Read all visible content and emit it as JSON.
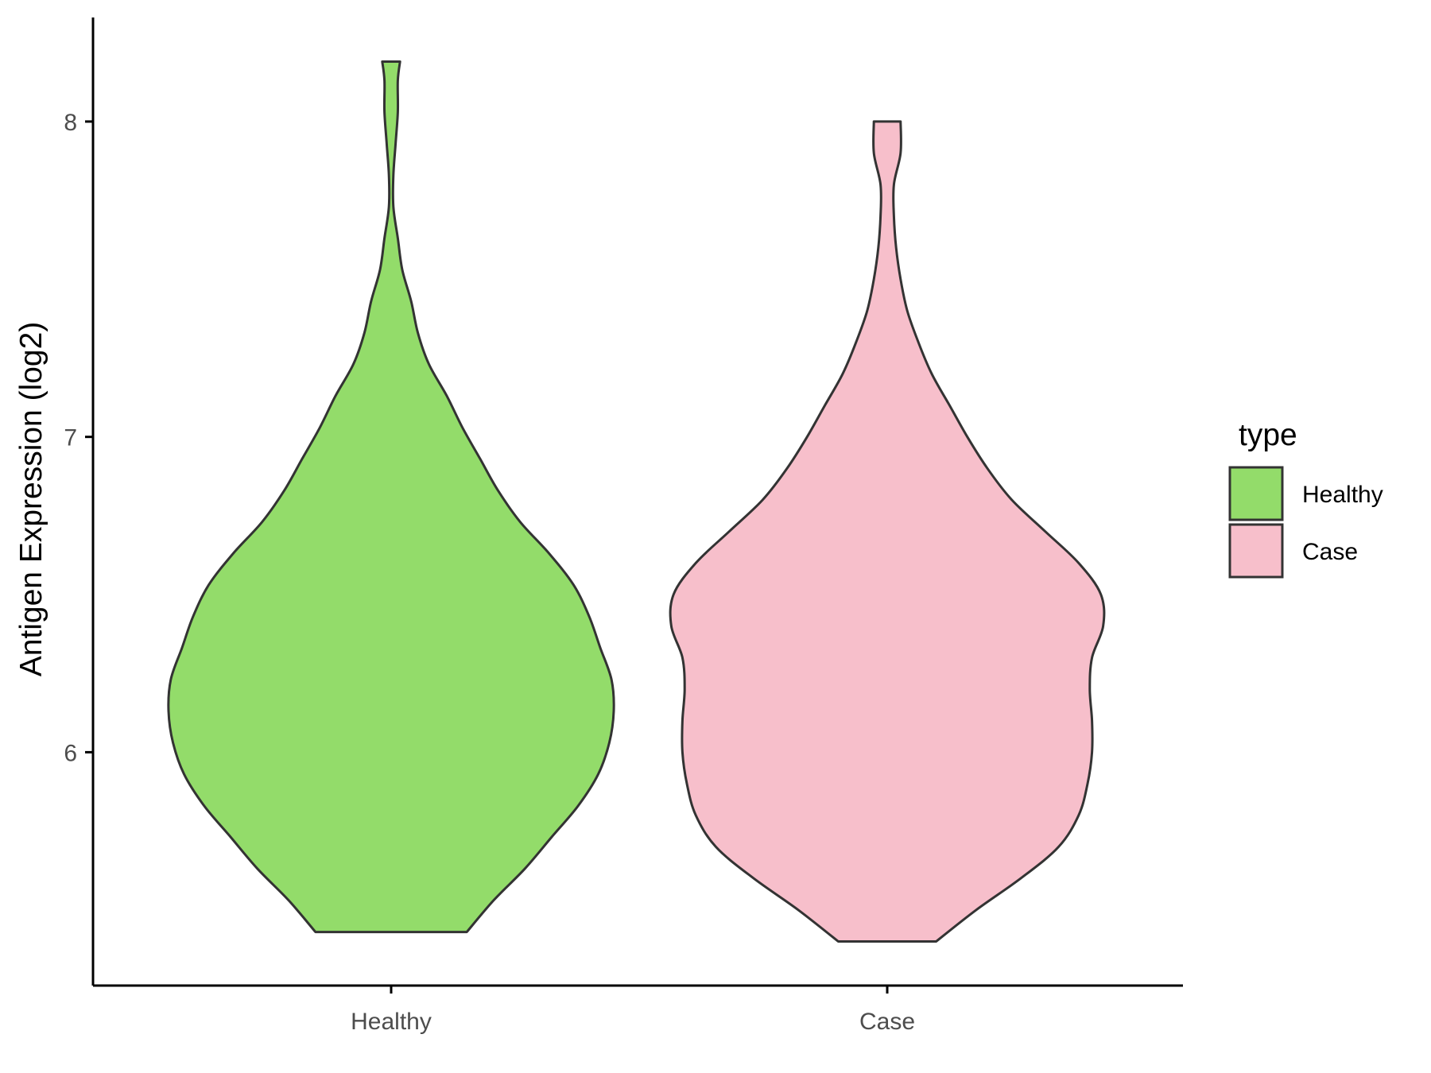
{
  "chart_data": {
    "type": "violin",
    "title": "",
    "xlabel": "",
    "ylabel": "Antigen Expression (log2)",
    "categories": [
      "Healthy",
      "Case"
    ],
    "ylim": [
      5.26,
      8.33
    ],
    "yticks": [
      6,
      7,
      8
    ],
    "grid": false,
    "legend": {
      "title": "type",
      "placement": "right",
      "entries": [
        {
          "label": "Healthy",
          "color": "#93dc6a"
        },
        {
          "label": "Case",
          "color": "#f7bfcb"
        }
      ]
    },
    "series": [
      {
        "name": "Healthy",
        "color": "#93dc6a",
        "min": 5.43,
        "max": 8.19,
        "density_profile": [
          [
            5.43,
            0.34
          ],
          [
            5.53,
            0.46
          ],
          [
            5.63,
            0.6
          ],
          [
            5.73,
            0.72
          ],
          [
            5.83,
            0.84
          ],
          [
            5.93,
            0.93
          ],
          [
            6.03,
            0.98
          ],
          [
            6.13,
            1.0
          ],
          [
            6.23,
            0.99
          ],
          [
            6.33,
            0.94
          ],
          [
            6.43,
            0.89
          ],
          [
            6.53,
            0.82
          ],
          [
            6.63,
            0.71
          ],
          [
            6.73,
            0.58
          ],
          [
            6.83,
            0.48
          ],
          [
            6.93,
            0.4
          ],
          [
            7.03,
            0.32
          ],
          [
            7.13,
            0.25
          ],
          [
            7.23,
            0.17
          ],
          [
            7.33,
            0.12
          ],
          [
            7.43,
            0.09
          ],
          [
            7.53,
            0.05
          ],
          [
            7.63,
            0.03
          ],
          [
            7.73,
            0.01
          ],
          [
            7.83,
            0.01
          ],
          [
            7.93,
            0.02
          ],
          [
            8.03,
            0.03
          ],
          [
            8.13,
            0.03
          ],
          [
            8.19,
            0.04
          ]
        ]
      },
      {
        "name": "Case",
        "color": "#f7bfcb",
        "min": 5.4,
        "max": 8.0,
        "density_profile": [
          [
            5.4,
            0.22
          ],
          [
            5.5,
            0.4
          ],
          [
            5.6,
            0.6
          ],
          [
            5.7,
            0.77
          ],
          [
            5.8,
            0.86
          ],
          [
            5.9,
            0.9
          ],
          [
            6.0,
            0.92
          ],
          [
            6.1,
            0.92
          ],
          [
            6.2,
            0.91
          ],
          [
            6.3,
            0.92
          ],
          [
            6.4,
            0.97
          ],
          [
            6.5,
            0.96
          ],
          [
            6.6,
            0.86
          ],
          [
            6.7,
            0.71
          ],
          [
            6.8,
            0.56
          ],
          [
            6.9,
            0.45
          ],
          [
            7.0,
            0.36
          ],
          [
            7.1,
            0.28
          ],
          [
            7.2,
            0.2
          ],
          [
            7.3,
            0.14
          ],
          [
            7.4,
            0.09
          ],
          [
            7.5,
            0.06
          ],
          [
            7.6,
            0.04
          ],
          [
            7.7,
            0.03
          ],
          [
            7.8,
            0.03
          ],
          [
            7.9,
            0.06
          ],
          [
            8.0,
            0.06
          ]
        ]
      }
    ]
  },
  "colors": {
    "outline": "#333333",
    "axis": "#000000",
    "tick_text": "#4d4d4d"
  }
}
